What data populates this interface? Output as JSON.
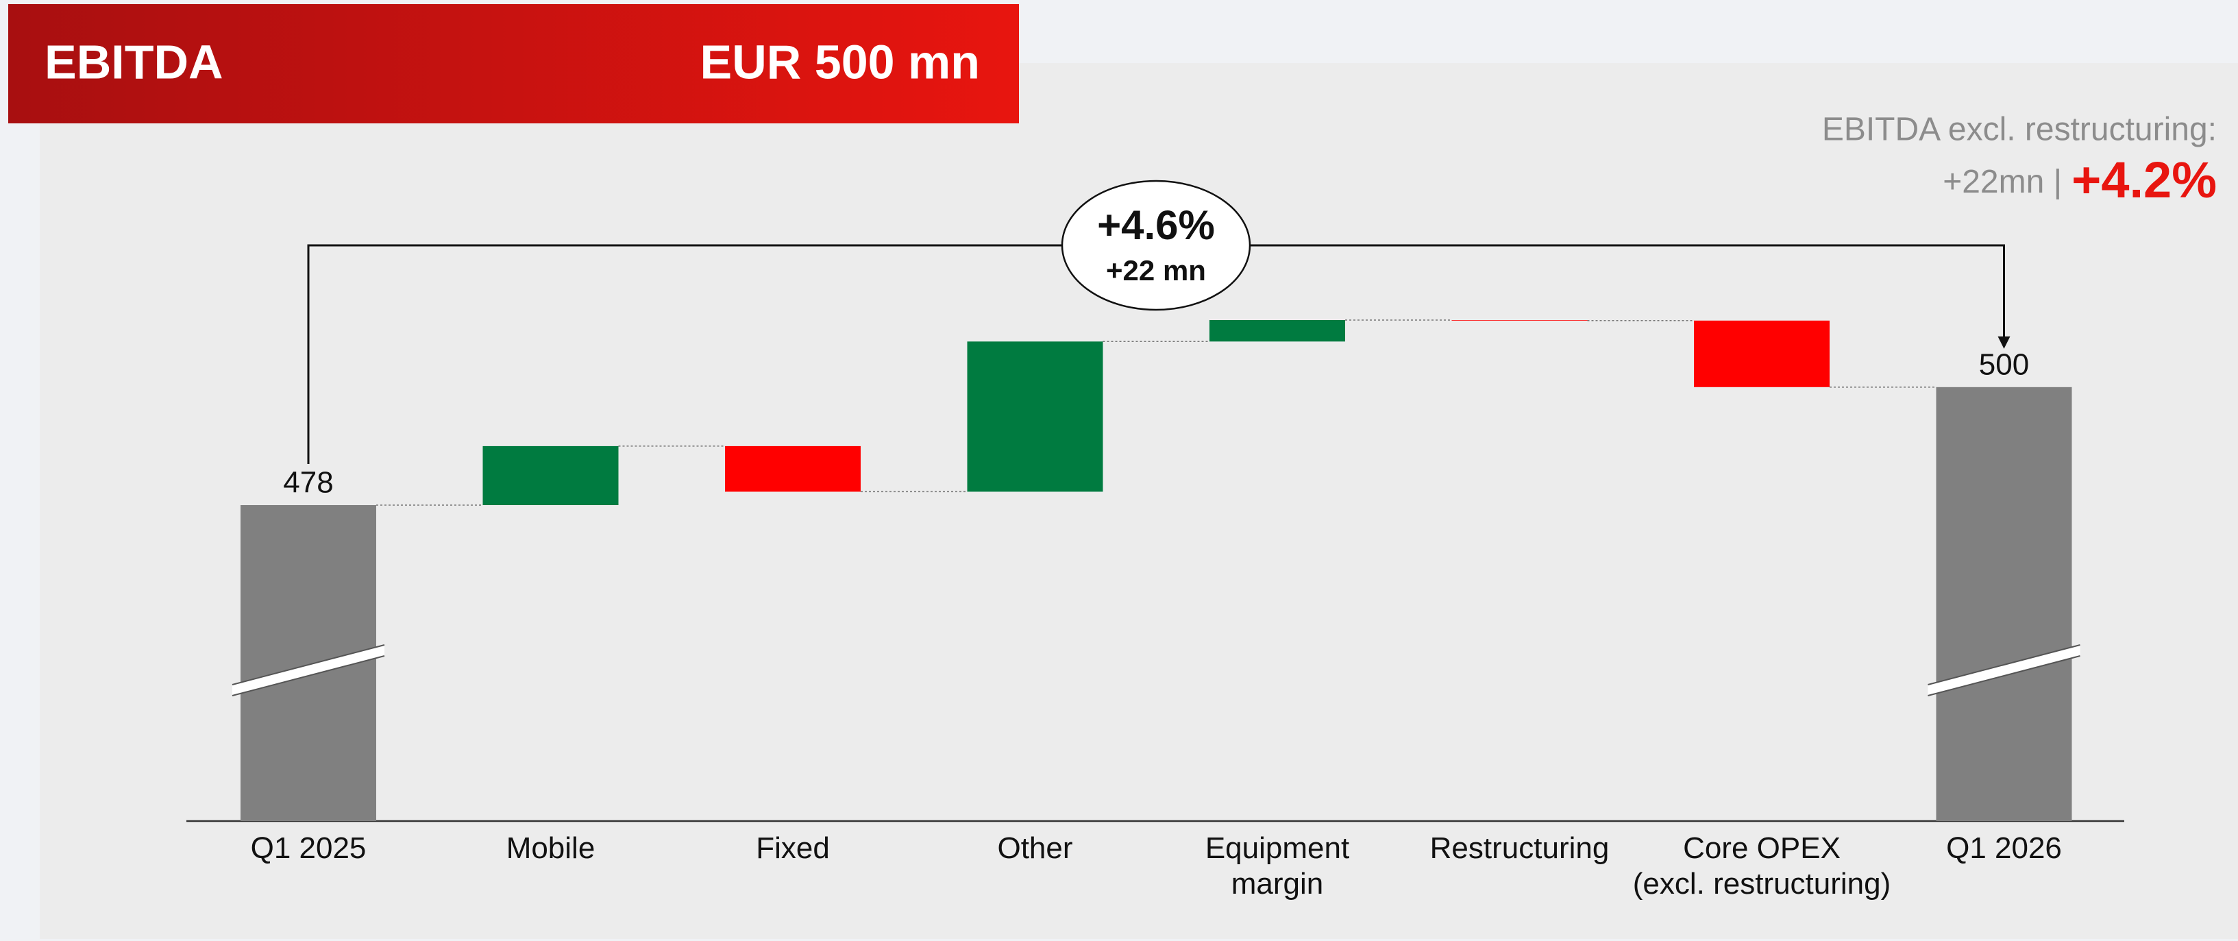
{
  "header": {
    "title": "EBITDA",
    "value": "EUR 500 mn"
  },
  "chart_data": {
    "type": "waterfall",
    "categories": [
      "Q1 2025",
      "Mobile",
      "Fixed",
      "Other",
      "Equipment\nmargin",
      "Restructuring",
      "Core OPEX\n(excl. restructuring)",
      "Q1 2026"
    ],
    "values": [
      478,
      11,
      -8.5,
      28,
      4,
      -0.1,
      -12.4,
      500
    ],
    "is_total": [
      true,
      false,
      false,
      false,
      false,
      false,
      false,
      true
    ],
    "colors": {
      "increase": "#007b40",
      "decrease": "#ff0000",
      "total": "#808080"
    },
    "change_bubble": {
      "percent": "+4.6%",
      "absolute": "+22 mn"
    },
    "annotation": {
      "title": "EBITDA excl. restructuring:",
      "absolute": "+22mn |",
      "percent": "+4.2%"
    }
  }
}
